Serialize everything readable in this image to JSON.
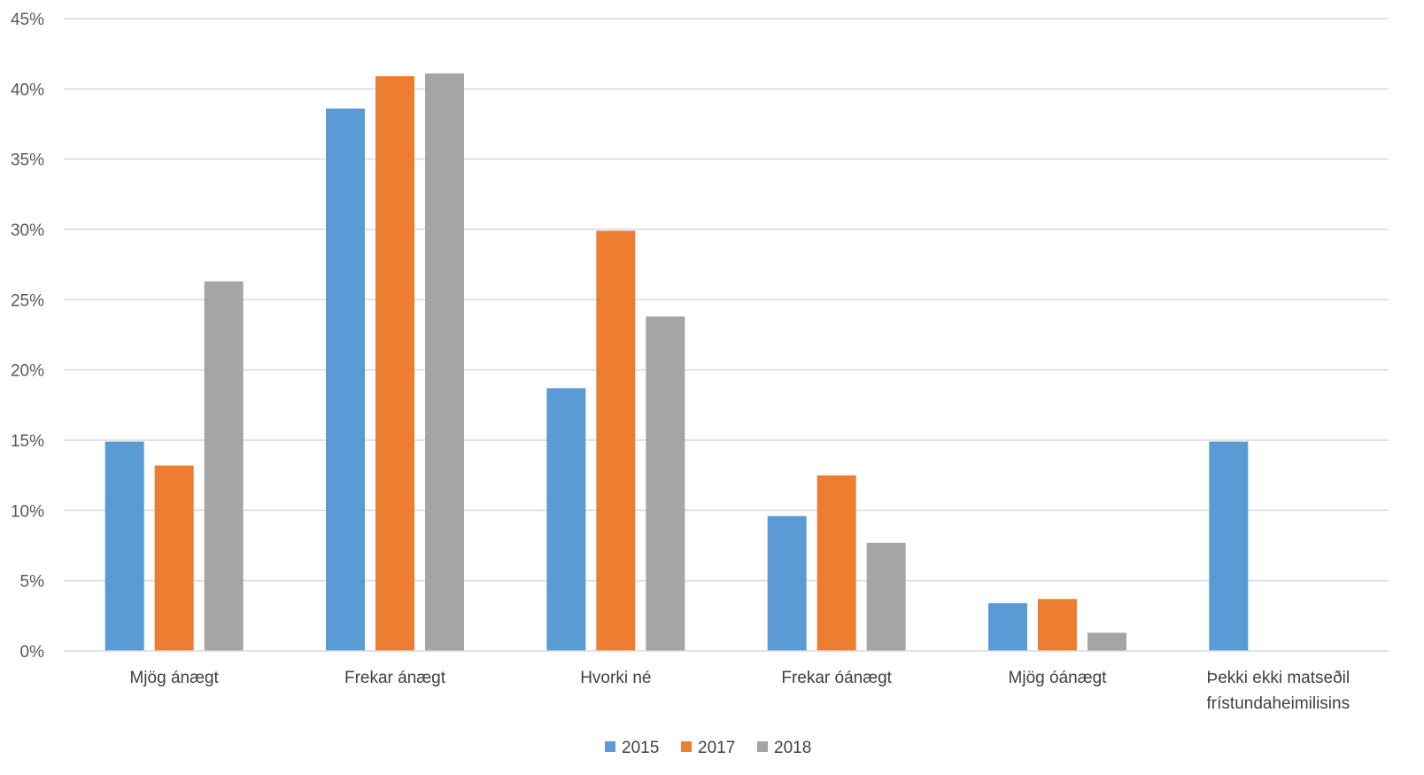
{
  "chart_data": {
    "type": "bar",
    "categories": [
      [
        "Mjög ánægt"
      ],
      [
        "Frekar ánægt"
      ],
      [
        "Hvorki né"
      ],
      [
        "Frekar óánægt"
      ],
      [
        "Mjög óánægt"
      ],
      [
        "Þekki ekki matseðil",
        "frístundaheimilisins"
      ]
    ],
    "series": [
      {
        "name": "2015",
        "color": "#5B9BD5",
        "values": [
          14.9,
          38.6,
          18.7,
          9.6,
          3.4,
          14.9
        ]
      },
      {
        "name": "2017",
        "color": "#ED7D31",
        "values": [
          13.2,
          40.9,
          29.9,
          12.5,
          3.7,
          null
        ]
      },
      {
        "name": "2018",
        "color": "#A5A5A5",
        "values": [
          26.3,
          41.1,
          23.8,
          7.7,
          1.3,
          null
        ]
      }
    ],
    "ylim": [
      0,
      45
    ],
    "yticks": [
      "0%",
      "5%",
      "10%",
      "15%",
      "20%",
      "25%",
      "30%",
      "35%",
      "40%",
      "45%"
    ],
    "grid": true,
    "legend_position": "bottom"
  }
}
